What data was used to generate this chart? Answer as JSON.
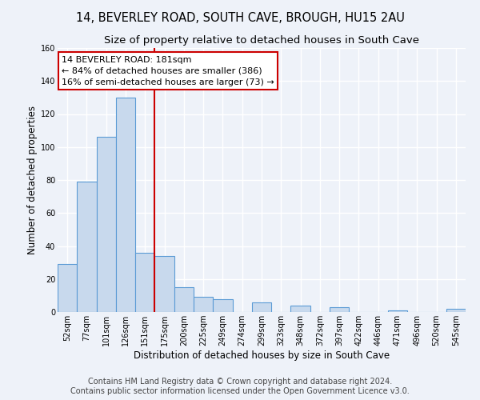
{
  "title": "14, BEVERLEY ROAD, SOUTH CAVE, BROUGH, HU15 2AU",
  "subtitle": "Size of property relative to detached houses in South Cave",
  "xlabel": "Distribution of detached houses by size in South Cave",
  "ylabel": "Number of detached properties",
  "bin_labels": [
    "52sqm",
    "77sqm",
    "101sqm",
    "126sqm",
    "151sqm",
    "175sqm",
    "200sqm",
    "225sqm",
    "249sqm",
    "274sqm",
    "299sqm",
    "323sqm",
    "348sqm",
    "372sqm",
    "397sqm",
    "422sqm",
    "446sqm",
    "471sqm",
    "496sqm",
    "520sqm",
    "545sqm"
  ],
  "bin_values": [
    29,
    79,
    106,
    130,
    36,
    34,
    15,
    9,
    8,
    0,
    6,
    0,
    4,
    0,
    3,
    0,
    0,
    1,
    0,
    0,
    2
  ],
  "bar_color": "#c8d9ed",
  "bar_edge_color": "#5b9bd5",
  "reference_line_color": "#cc0000",
  "annotation_text": "14 BEVERLEY ROAD: 181sqm\n← 84% of detached houses are smaller (386)\n16% of semi-detached houses are larger (73) →",
  "annotation_box_color": "white",
  "annotation_box_edge_color": "#cc0000",
  "ylim": [
    0,
    160
  ],
  "yticks": [
    0,
    20,
    40,
    60,
    80,
    100,
    120,
    140,
    160
  ],
  "footer_line1": "Contains HM Land Registry data © Crown copyright and database right 2024.",
  "footer_line2": "Contains public sector information licensed under the Open Government Licence v3.0.",
  "background_color": "#eef2f9",
  "grid_color": "white",
  "title_fontsize": 10.5,
  "subtitle_fontsize": 9.5,
  "xlabel_fontsize": 8.5,
  "ylabel_fontsize": 8.5,
  "tick_fontsize": 7,
  "annotation_fontsize": 8,
  "footer_fontsize": 7
}
